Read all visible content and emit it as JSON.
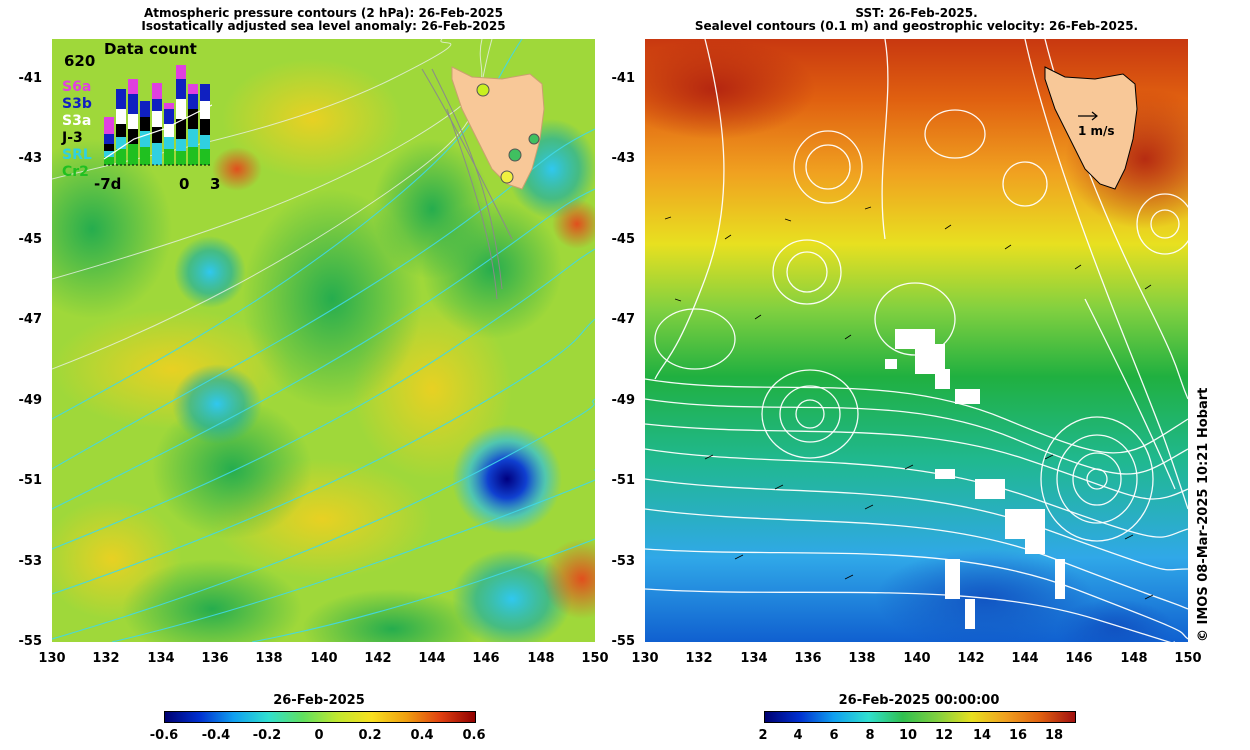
{
  "left": {
    "title_line1": "Atmospheric pressure contours (2 hPa): 26-Feb-2025",
    "title_line2": "Isostatically adjusted sea level anomaly: 26-Feb-2025",
    "colorbar": {
      "title": "26-Feb-2025",
      "ticks": [
        "-0.6",
        "-0.4",
        "-0.2",
        "0",
        "0.2",
        "0.4",
        "0.6"
      ]
    },
    "inset": {
      "title": "Data count",
      "max_label": "620",
      "legend": [
        {
          "label": "S6a",
          "color": "#e040e0"
        },
        {
          "label": "S3b",
          "color": "#1020c0"
        },
        {
          "label": "S3a",
          "color": "#ffffff"
        },
        {
          "label": "J-3",
          "color": "#000000"
        },
        {
          "label": "SRL",
          "color": "#30d0e0"
        },
        {
          "label": "Cr2",
          "color": "#20c020"
        }
      ],
      "x_labels": [
        "-7d",
        "0",
        "3"
      ]
    }
  },
  "right": {
    "title_line1": "SST: 26-Feb-2025.",
    "title_line2": "Sealevel contours (0.1 m) and geostrophic velocity: 26-Feb-2025.",
    "velocity_scale_label": "1 m/s",
    "colorbar": {
      "title": "26-Feb-2025 00:00:00",
      "ticks": [
        "2",
        "4",
        "6",
        "8",
        "10",
        "12",
        "14",
        "16",
        "18"
      ]
    }
  },
  "axes": {
    "y_ticks": [
      "-41",
      "-43",
      "-45",
      "-47",
      "-49",
      "-51",
      "-53",
      "-55"
    ],
    "x_ticks": [
      "130",
      "132",
      "134",
      "136",
      "138",
      "140",
      "142",
      "144",
      "146",
      "148",
      "150"
    ]
  },
  "credit": "© IMOS 08-Mar-2025 10:21 Hobart",
  "colors": {
    "land": "#f8c898",
    "sla_background": "#9fd83a",
    "sst_warm": "#e06010",
    "sst_cool": "#30a0f0"
  }
}
